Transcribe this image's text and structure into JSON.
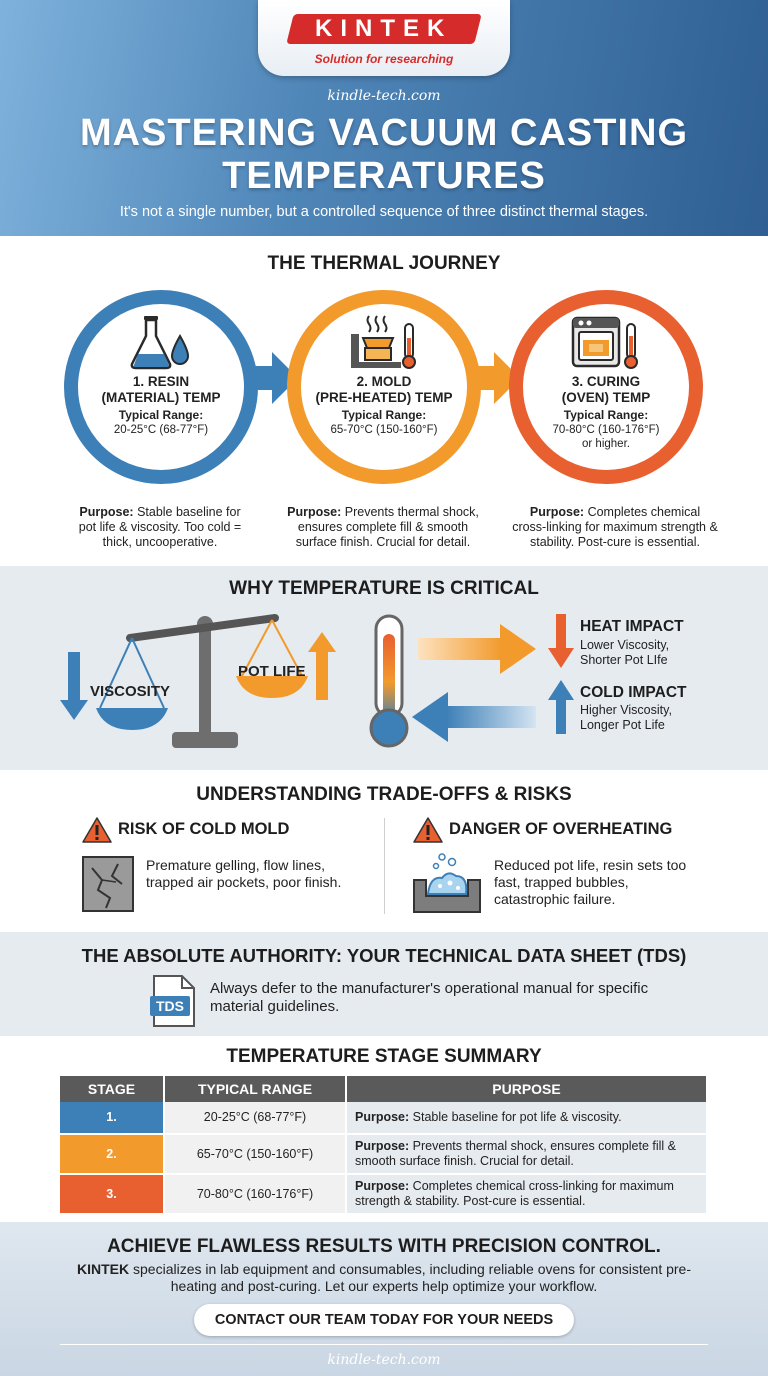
{
  "header": {
    "logo_text": "KINTEK",
    "logo_tagline": "Solution for researching",
    "site_url": "kindle-tech.com",
    "title_line1": "MASTERING VACUUM CASTING",
    "title_line2": "TEMPERATURES",
    "subtitle": "It's not a single number, but a controlled sequence of three distinct thermal stages."
  },
  "journey": {
    "title": "THE THERMAL JOURNEY",
    "stages": [
      {
        "name_line1": "1. RESIN",
        "name_line2": "(MATERIAL) TEMP",
        "range_label": "Typical Range:",
        "range_line1": "20-25°C (68-77°F)",
        "range_line2": "",
        "purpose_label": "Purpose:",
        "purpose_text": "Stable baseline for pot life & viscosity. Too cold = thick, uncooperative.",
        "color": "#3d7fb7",
        "icon": "beaker-icon"
      },
      {
        "name_line1": "2. MOLD",
        "name_line2": "(PRE-HEATED) TEMP",
        "range_label": "Typical Range:",
        "range_line1": "65-70°C (150-160°F)",
        "range_line2": "",
        "purpose_label": "Purpose:",
        "purpose_text": "Prevents thermal shock, ensures complete fill & smooth surface finish. Crucial for detail.",
        "color": "#f29a2c",
        "icon": "heated-mold-icon"
      },
      {
        "name_line1": "3. CURING",
        "name_line2": "(OVEN) TEMP",
        "range_label": "Typical Range:",
        "range_line1": "70-80°C (160-176°F)",
        "range_line2": "or higher.",
        "purpose_label": "Purpose:",
        "purpose_text": "Completes chemical cross-linking for maximum strength & stability. Post-cure is essential.",
        "color": "#e85f30",
        "icon": "oven-icon"
      }
    ]
  },
  "critical": {
    "title": "WHY TEMPERATURE IS CRITICAL",
    "viscosity_label": "VISCOSITY",
    "pot_life_label": "POT LIFE",
    "heat_title": "HEAT IMPACT",
    "heat_line1": "Lower Viscosity,",
    "heat_line2": "Shorter Pot LIfe",
    "cold_title": "COLD IMPACT",
    "cold_line1": "Higher Viscosity,",
    "cold_line2": "Longer Pot Life",
    "colors": {
      "blue": "#3d7fb7",
      "orange": "#f29a2c"
    }
  },
  "risks": {
    "title": "UNDERSTANDING TRADE-OFFS & RISKS",
    "cold_title": "RISK OF COLD MOLD",
    "cold_text": "Premature gelling, flow lines, trapped air pockets, poor finish.",
    "hot_title": "DANGER OF OVERHEATING",
    "hot_text": "Reduced pot life, resin sets too fast, trapped bubbles, catastrophic failure."
  },
  "tds": {
    "title": "THE ABSOLUTE AUTHORITY: YOUR TECHNICAL DATA SHEET (TDS)",
    "icon_label": "TDS",
    "text": "Always defer to the manufacturer's operational manual for specific material guidelines."
  },
  "summary": {
    "title": "TEMPERATURE STAGE SUMMARY",
    "headers": [
      "STAGE",
      "TYPICAL RANGE",
      "PURPOSE"
    ],
    "rows": [
      {
        "stage": "1.",
        "range": "20-25°C (68-77°F)",
        "purpose_label": "Purpose:",
        "purpose_text": "Stable baseline for pot life & viscosity.",
        "color": "#3d7fb7"
      },
      {
        "stage": "2.",
        "range": "65-70°C (150-160°F)",
        "purpose_label": "Purpose:",
        "purpose_text": "Prevents thermal shock, ensures complete fill & smooth surface finish. Crucial for detail.",
        "color": "#f29a2c"
      },
      {
        "stage": "3.",
        "range": "70-80°C (160-176°F)",
        "purpose_label": "Purpose:",
        "purpose_text": "Completes chemical cross-linking for maximum strength & stability. Post-cure is essential.",
        "color": "#e85f30"
      }
    ]
  },
  "footer": {
    "title": "ACHIEVE FLAWLESS RESULTS WITH PRECISION CONTROL.",
    "brand": "KINTEK",
    "text": "specializes in lab equipment and consumables, including reliable ovens for consistent pre-heating and post-curing. Let our experts help optimize your workflow.",
    "cta_label": "CONTACT OUR TEAM TODAY FOR YOUR NEEDS",
    "site_url": "kindle-tech.com"
  }
}
